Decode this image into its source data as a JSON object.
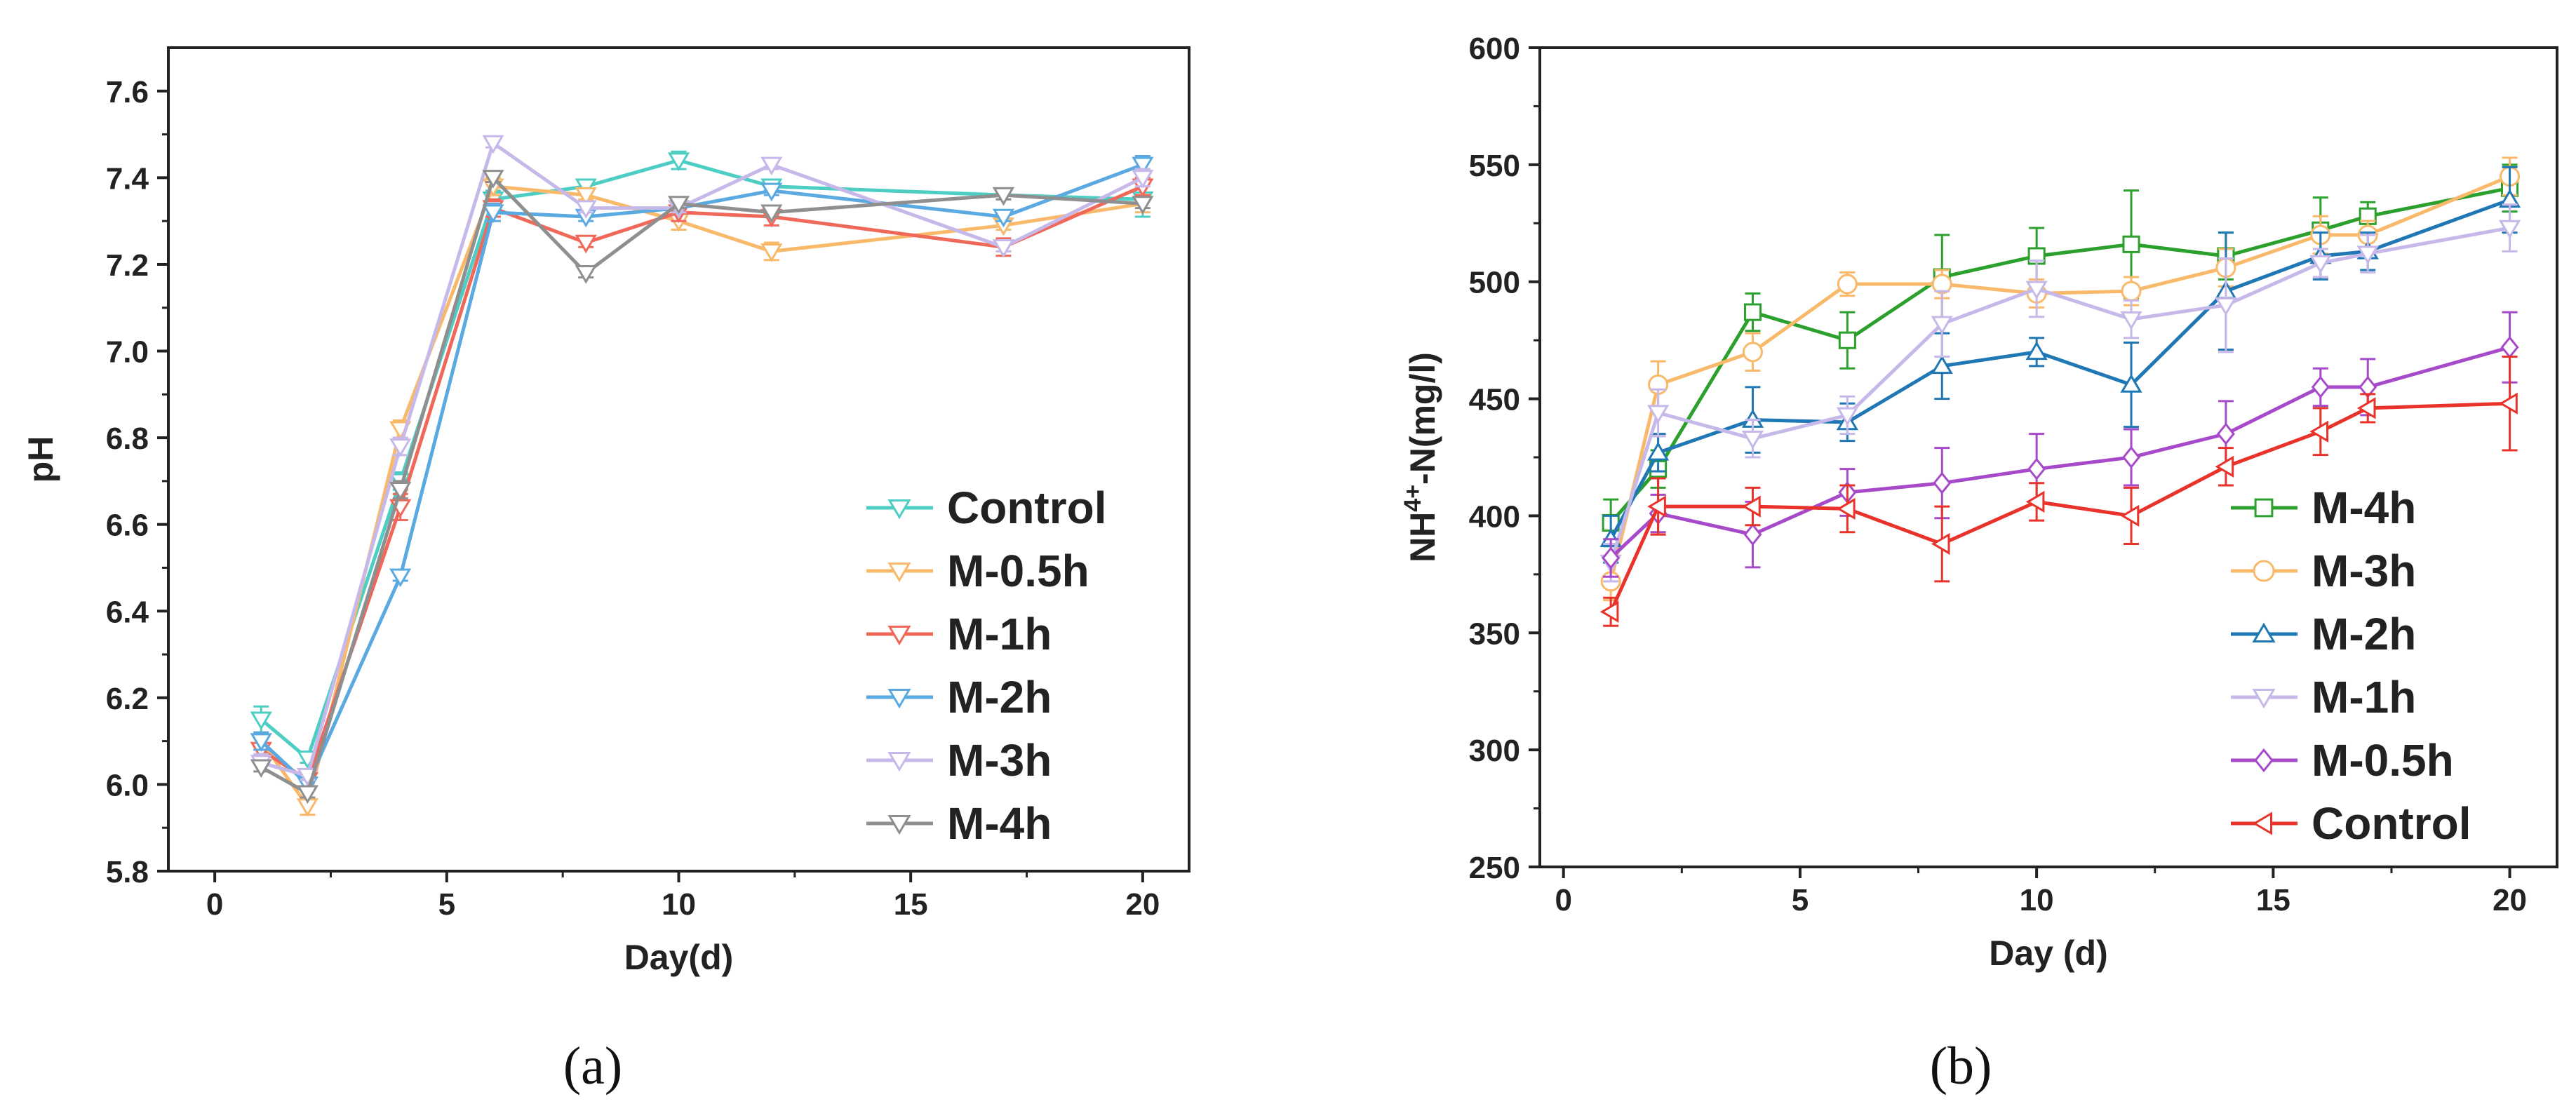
{
  "figure": {
    "panels": [
      "(a)",
      "(b)"
    ]
  },
  "chart_data": [
    {
      "type": "line",
      "panel_label": "(a)",
      "xlabel": "Day(d)",
      "ylabel": "pH",
      "xlim": [
        -1,
        21
      ],
      "ylim": [
        5.8,
        7.7
      ],
      "xticks": [
        0,
        5,
        10,
        15,
        20
      ],
      "yticks": [
        5.8,
        6.0,
        6.2,
        6.4,
        6.6,
        6.8,
        7.0,
        7.2,
        7.4,
        7.6
      ],
      "grid": false,
      "legend_position": "bottom-right",
      "series": [
        {
          "name": "Control",
          "color": "#4ecdc4",
          "marker": "triangle-down",
          "x": [
            1,
            2,
            4,
            6,
            8,
            10,
            12,
            17,
            20
          ],
          "y": [
            6.15,
            6.06,
            6.7,
            7.35,
            7.38,
            7.44,
            7.38,
            7.36,
            7.35
          ],
          "err": [
            0.03,
            0.01,
            0.02,
            0.02,
            0.01,
            0.02,
            0.01,
            0.01,
            0.04
          ]
        },
        {
          "name": "M-0.5h",
          "color": "#f9b96b",
          "marker": "triangle-down",
          "x": [
            1,
            2,
            4,
            6,
            8,
            10,
            12,
            17,
            20
          ],
          "y": [
            6.1,
            5.95,
            6.82,
            7.38,
            7.36,
            7.3,
            7.23,
            7.29,
            7.34
          ],
          "err": [
            0.02,
            0.02,
            0.02,
            0.02,
            0.01,
            0.02,
            0.02,
            0.01,
            0.02
          ]
        },
        {
          "name": "M-1h",
          "color": "#f0685a",
          "marker": "triangle-down",
          "x": [
            1,
            2,
            4,
            6,
            8,
            10,
            12,
            17,
            20
          ],
          "y": [
            6.08,
            6.01,
            6.64,
            7.33,
            7.25,
            7.32,
            7.31,
            7.24,
            7.38
          ],
          "err": [
            0.03,
            0.02,
            0.03,
            0.02,
            0.01,
            0.02,
            0.02,
            0.02,
            0.02
          ]
        },
        {
          "name": "M-2h",
          "color": "#5aa9e0",
          "marker": "triangle-down",
          "x": [
            1,
            2,
            4,
            6,
            8,
            10,
            12,
            17,
            20
          ],
          "y": [
            6.1,
            6.0,
            6.48,
            7.32,
            7.31,
            7.33,
            7.37,
            7.31,
            7.43
          ],
          "err": [
            0.02,
            0.01,
            0.01,
            0.02,
            0.01,
            0.01,
            0.01,
            0.01,
            0.02
          ]
        },
        {
          "name": "M-3h",
          "color": "#c7b8ea",
          "marker": "triangle-down",
          "x": [
            1,
            2,
            4,
            6,
            8,
            10,
            12,
            17,
            20
          ],
          "y": [
            6.05,
            6.02,
            6.78,
            7.48,
            7.33,
            7.33,
            7.43,
            7.24,
            7.4
          ],
          "err": [
            0.02,
            0.01,
            0.02,
            0.01,
            0.01,
            0.01,
            0.01,
            0.01,
            0.02
          ]
        },
        {
          "name": "M-4h",
          "color": "#8f8f8f",
          "marker": "triangle-down",
          "x": [
            1,
            2,
            4,
            6,
            8,
            10,
            12,
            17,
            20
          ],
          "y": [
            6.04,
            5.98,
            6.68,
            7.4,
            7.18,
            7.34,
            7.32,
            7.36,
            7.34
          ],
          "err": [
            0.01,
            0.01,
            0.02,
            0.01,
            0.01,
            0.01,
            0.01,
            0.01,
            0.01
          ]
        }
      ]
    },
    {
      "type": "line",
      "panel_label": "(b)",
      "xlabel": "Day (d)",
      "ylabel": "NH4+-N(mg/l)",
      "ylabel_parts": {
        "base": "NH",
        "sup": "4+",
        "rest": "-N(mg/l)"
      },
      "xlim": [
        -0.5,
        21
      ],
      "ylim": [
        250,
        600
      ],
      "xticks": [
        0,
        5,
        10,
        15,
        20
      ],
      "yticks": [
        250,
        300,
        350,
        400,
        450,
        500,
        550,
        600
      ],
      "grid": false,
      "legend_position": "bottom-right",
      "series": [
        {
          "name": "M-4h",
          "color": "#2ca02c",
          "marker": "square",
          "x": [
            1,
            2,
            4,
            6,
            8,
            10,
            12,
            14,
            16,
            17,
            20
          ],
          "y": [
            397,
            420,
            487,
            475,
            502,
            511,
            516,
            511,
            522,
            528,
            540
          ],
          "err": [
            10,
            8,
            8,
            12,
            18,
            12,
            23,
            10,
            14,
            6,
            10
          ]
        },
        {
          "name": "M-3h",
          "color": "#f9b96b",
          "marker": "circle",
          "x": [
            1,
            2,
            4,
            6,
            8,
            10,
            12,
            14,
            16,
            17,
            20
          ],
          "y": [
            372,
            456,
            470,
            499,
            499,
            495,
            496,
            506,
            520,
            520,
            545
          ],
          "err": [
            8,
            10,
            8,
            5,
            6,
            6,
            6,
            8,
            8,
            6,
            8
          ]
        },
        {
          "name": "M-2h",
          "color": "#1f77b4",
          "marker": "triangle-up",
          "x": [
            1,
            2,
            4,
            6,
            8,
            10,
            12,
            14,
            16,
            17,
            20
          ],
          "y": [
            390,
            427,
            441,
            440,
            464,
            470,
            456,
            496,
            511,
            513,
            535
          ],
          "err": [
            10,
            8,
            14,
            8,
            14,
            6,
            18,
            25,
            10,
            8,
            14
          ]
        },
        {
          "name": "M-1h",
          "color": "#c7b8ea",
          "marker": "triangle-down",
          "x": [
            1,
            2,
            4,
            6,
            8,
            10,
            12,
            14,
            16,
            17,
            20
          ],
          "y": [
            380,
            444,
            433,
            443,
            482,
            497,
            484,
            490,
            508,
            512,
            523
          ],
          "err": [
            8,
            10,
            8,
            8,
            14,
            12,
            8,
            20,
            6,
            8,
            10
          ]
        },
        {
          "name": "M-0.5h",
          "color": "#a64ac9",
          "marker": "diamond",
          "x": [
            1,
            2,
            4,
            6,
            8,
            10,
            12,
            14,
            16,
            17,
            20
          ],
          "y": [
            382,
            401,
            392,
            410,
            414,
            420,
            425,
            435,
            455,
            455,
            472
          ],
          "err": [
            8,
            8,
            14,
            10,
            15,
            15,
            12,
            14,
            8,
            12,
            15
          ]
        },
        {
          "name": "Control",
          "color": "#e8322a",
          "marker": "triangle-left",
          "x": [
            1,
            2,
            4,
            6,
            8,
            10,
            12,
            14,
            16,
            17,
            20
          ],
          "y": [
            359,
            404,
            404,
            403,
            388,
            406,
            400,
            421,
            436,
            446,
            448
          ],
          "err": [
            6,
            12,
            8,
            10,
            16,
            8,
            12,
            8,
            10,
            6,
            20
          ]
        }
      ]
    }
  ]
}
